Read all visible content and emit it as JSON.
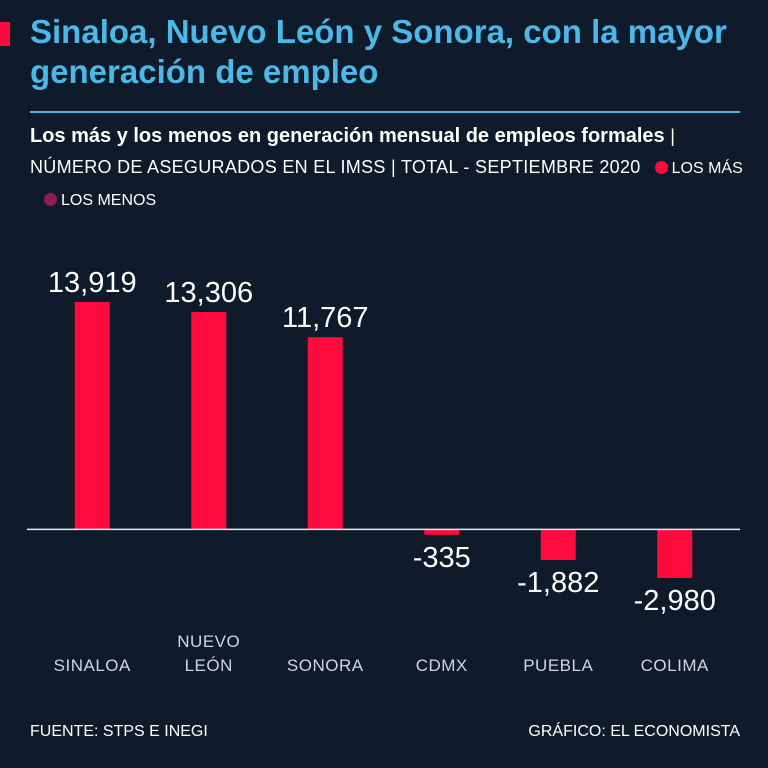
{
  "chart_data": {
    "type": "bar",
    "title": "Sinaloa, Nuevo León y Sonora, con la mayor generación de empleo",
    "subtitle": "Los más y los menos en generación mensual de empleos formales",
    "subtitle_detail": "| NÚMERO DE ASEGURADOS EN EL IMSS | TOTAL - SEPTIEMBRE 2020",
    "legend": [
      {
        "name": "LOS MÁS",
        "color": "#ff0a3c"
      },
      {
        "name": "LOS MENOS",
        "color": "#8c1d4e"
      }
    ],
    "categories": [
      "SINALOA",
      "NUEVO LEÓN",
      "SONORA",
      "CDMX",
      "PUEBLA",
      "COLIMA"
    ],
    "values": [
      13919,
      13306,
      11767,
      -335,
      -1882,
      -2980
    ],
    "value_labels": [
      "13,919",
      "13,306",
      "11,767",
      "-335",
      "-1,882",
      "-2,980"
    ],
    "color": "#ff0a3c",
    "source": "FUENTE: STPS E INEGI",
    "credit": "GRÁFICO: EL ECONOMISTA"
  }
}
